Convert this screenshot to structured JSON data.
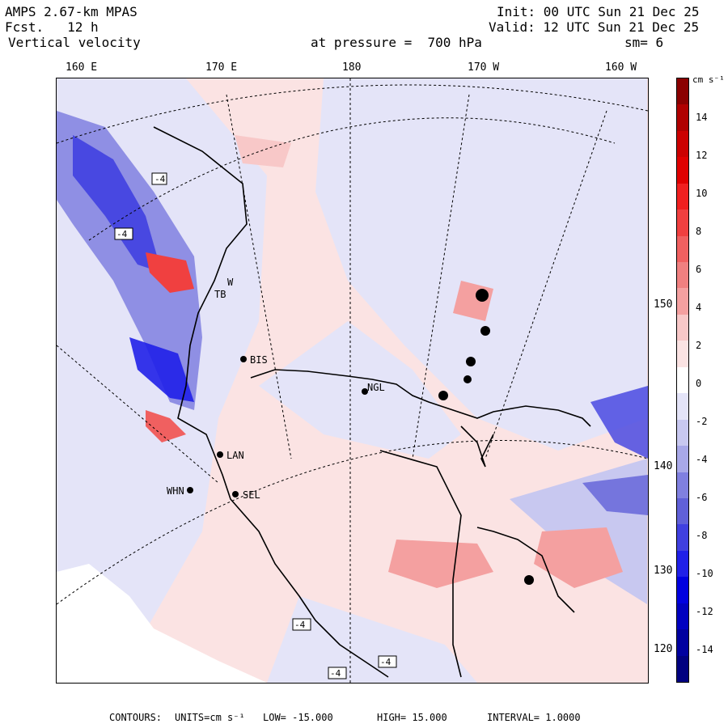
{
  "header": {
    "model": "AMPS 2.67-km MPAS",
    "fcst": "Fcst.   12 h",
    "field": "Vertical velocity",
    "init": "Init: 00 UTC Sun 21 Dec 25",
    "valid": "Valid: 12 UTC Sun 21 Dec 25",
    "pressure": "at pressure =  700 hPa",
    "smoothing": "sm= 6"
  },
  "longitude_labels": [
    "160 E",
    "170 E",
    "180",
    "170 W",
    "160 W"
  ],
  "latitude_labels": [
    "150 W",
    "140 W",
    "130 W",
    "120 W"
  ],
  "colorbar": {
    "unit": "cm s⁻¹",
    "ticks": [
      "14",
      "12",
      "10",
      "8",
      "6",
      "4",
      "2",
      "0",
      "-2",
      "-4",
      "-6",
      "-8",
      "-10",
      "-12",
      "-14"
    ],
    "colors": [
      "#8b0000",
      "#b00000",
      "#cc0000",
      "#e00000",
      "#f02020",
      "#f04040",
      "#f06060",
      "#f08080",
      "#f4a0a0",
      "#f8c8c8",
      "#fbe3e3",
      "#ffffff",
      "#e4e4f8",
      "#c8c8f0",
      "#a8a8e8",
      "#8080e0",
      "#6060d8",
      "#4040e0",
      "#2020e8",
      "#0000e0",
      "#0000c0",
      "#0000a0",
      "#000080"
    ]
  },
  "stations": [
    {
      "code": "BIS"
    },
    {
      "code": "NGL"
    },
    {
      "code": "LAN"
    },
    {
      "code": "SEL"
    },
    {
      "code": "WHN"
    },
    {
      "code": "TB"
    },
    {
      "code": "W"
    }
  ],
  "box_labels": [
    "-4",
    "-4",
    "-4",
    "-4",
    "-4"
  ],
  "footer": {
    "contours": "CONTOURS:",
    "units": "UNITS=cm s⁻¹",
    "low": "LOW= -15.000",
    "high": "HIGH= 15.000",
    "interval": "INTERVAL= 1.0000"
  },
  "colors": {
    "positive": "#f08080",
    "negative": "#6060d8",
    "background_pos": "#fbe3e3",
    "background_neg": "#e4e4f8"
  }
}
